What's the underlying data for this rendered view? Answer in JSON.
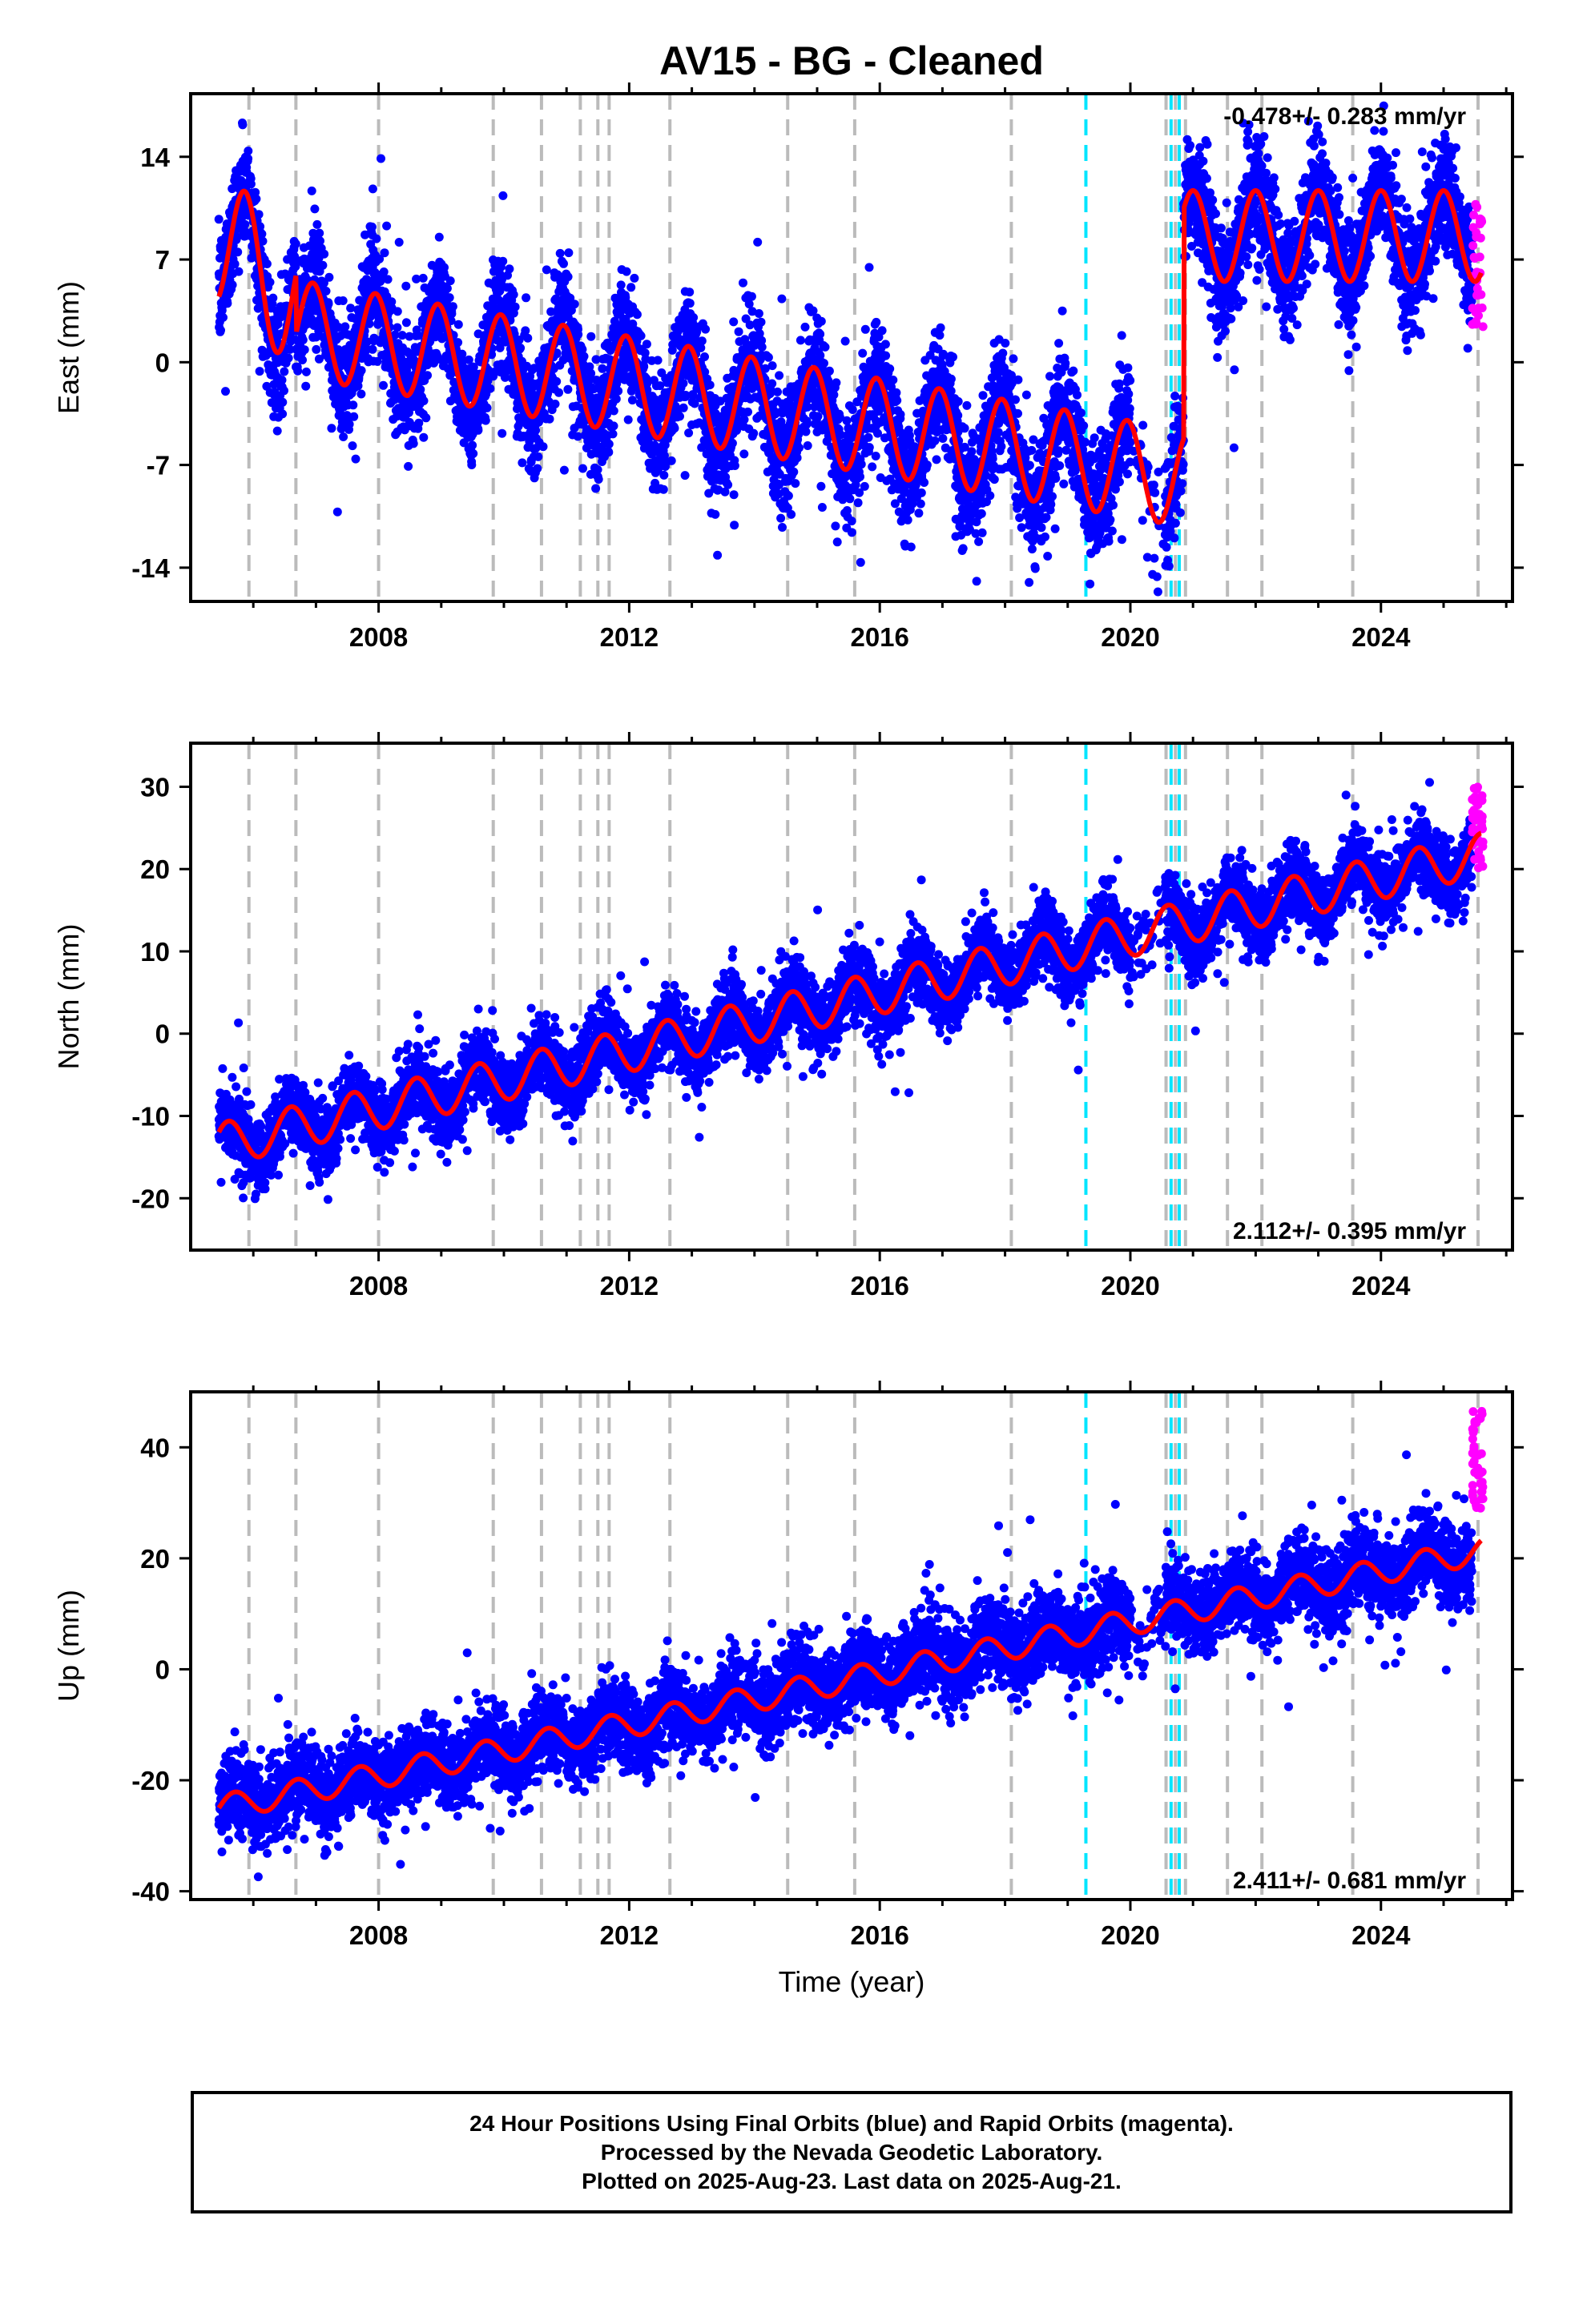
{
  "title": "AV15  - BG - Cleaned",
  "xlabel": "Time (year)",
  "footer": {
    "line1": "24 Hour Positions Using Final Orbits (blue) and Rapid Orbits (magenta).",
    "line2": "Processed by the Nevada Geodetic Laboratory.",
    "line3": "Plotted on 2025-Aug-23. Last data on 2025-Aug-21."
  },
  "colors": {
    "final": "#0000ff",
    "rapid": "#ff00ff",
    "model": "#ff0000",
    "event_gray": "#bbbbbb",
    "event_cyan": "#00e5ff"
  },
  "events": {
    "gray": [
      2005.93,
      2006.68,
      2008.0,
      2009.83,
      2010.6,
      2011.22,
      2011.5,
      2011.68,
      2012.65,
      2014.53,
      2015.6,
      2018.1,
      2020.57,
      2020.72,
      2020.88,
      2021.55,
      2022.1,
      2023.55,
      2025.55
    ],
    "cyan": [
      2019.29,
      2020.65,
      2020.78
    ]
  },
  "chart_data": [
    {
      "type": "scatter",
      "name": "east",
      "ylabel": "East (mm)",
      "xlim": [
        2005.0,
        2026.1
      ],
      "ylim": [
        -16.3,
        18.3
      ],
      "xticks": [
        2008,
        2012,
        2016,
        2020,
        2024
      ],
      "yticks": [
        -14,
        -7,
        0,
        7,
        14
      ],
      "rate_label": "-0.478+/- 0.283 mm/yr",
      "rate_position": "top-right",
      "model": {
        "segments": [
          {
            "start": 2005.45,
            "end": 2006.68,
            "offset": 8.5,
            "rate": -3.5,
            "amp": 4.6,
            "phase": 2005.87
          },
          {
            "start": 2006.68,
            "end": 2020.85,
            "offset": 2.3,
            "rate": -0.72,
            "amp": 3.3,
            "phase": 2007.95
          },
          {
            "start": 2020.85,
            "end": 2025.6,
            "offset": 8.6,
            "rate": 0.0,
            "amp": 3.1,
            "phase": 2021.0
          }
        ],
        "noise": 1.9
      },
      "rapid": {
        "start": 2025.45,
        "end": 2025.63,
        "center": 6.5,
        "spread": 4.5
      }
    },
    {
      "type": "scatter",
      "name": "north",
      "ylabel": "North (mm)",
      "xlim": [
        2005.0,
        2026.1
      ],
      "ylim": [
        -26.3,
        35.3
      ],
      "xticks": [
        2008,
        2012,
        2016,
        2020,
        2024
      ],
      "yticks": [
        -20,
        -10,
        0,
        10,
        20,
        30
      ],
      "rate_label": "2.112+/- 0.395 mm/yr",
      "rate_position": "bottom-right",
      "model": {
        "segments": [
          {
            "start": 2005.45,
            "end": 2025.6,
            "offset": -13.5,
            "rate": 1.75,
            "amp": 2.6,
            "phase": 2006.6
          }
        ],
        "noise": 2.1
      },
      "rapid": {
        "start": 2025.45,
        "end": 2025.63,
        "center": 25.0,
        "spread": 5.0
      }
    },
    {
      "type": "scatter",
      "name": "up",
      "ylabel": "Up (mm)",
      "xlim": [
        2005.0,
        2026.1
      ],
      "ylim": [
        -41.5,
        50.0
      ],
      "xticks": [
        2008,
        2012,
        2016,
        2020,
        2024
      ],
      "yticks": [
        -40,
        -20,
        0,
        20,
        40
      ],
      "rate_label": "2.411+/- 0.681 mm/yr",
      "rate_position": "bottom-right",
      "model": {
        "segments": [
          {
            "start": 2005.45,
            "end": 2025.6,
            "offset": -25.0,
            "rate": 2.3,
            "amp": 2.3,
            "phase": 2006.7
          }
        ],
        "noise": 3.6
      },
      "rapid": {
        "start": 2025.45,
        "end": 2025.63,
        "center": 38.0,
        "spread": 9.0
      }
    }
  ]
}
